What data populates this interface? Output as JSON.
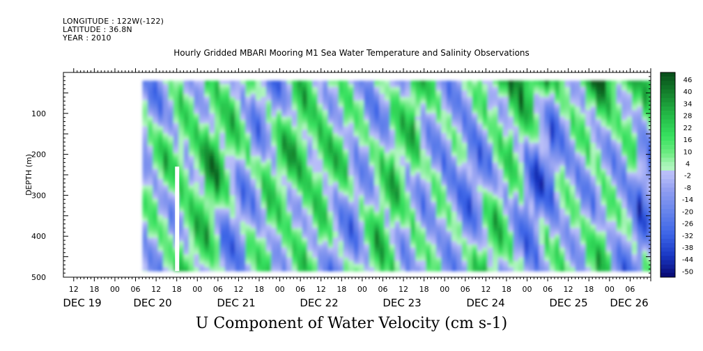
{
  "header": {
    "longitude": "LONGITUDE : 122W(-122)",
    "latitude": "LATITUDE : 36.8N",
    "year": "YEAR : 2010"
  },
  "title": "Hourly Gridded MBARI Mooring M1 Sea Water Temperature and Salinity Observations",
  "chart_data": {
    "type": "heatmap",
    "title": "Hourly Gridded MBARI Mooring M1 Sea Water Temperature and Salinity Observations",
    "variable_label": "U Component of Water Velocity (cm s-1)",
    "ylabel": "DEPTH (m)",
    "ylim": [
      500,
      0
    ],
    "yticks": [
      100,
      200,
      300,
      400,
      500
    ],
    "x_hour_labels": [
      "12",
      "18",
      "00",
      "06",
      "12",
      "18",
      "00",
      "06",
      "12",
      "18",
      "00",
      "06",
      "12",
      "18",
      "00",
      "06",
      "12",
      "18",
      "00",
      "06",
      "12",
      "18",
      "00",
      "06",
      "12",
      "18",
      "00",
      "06"
    ],
    "x_day_labels": [
      "DEC 19",
      "DEC 20",
      "DEC 21",
      "DEC 22",
      "DEC 23",
      "DEC 24",
      "DEC 25",
      "DEC 26"
    ],
    "xlim_hours": [
      -15,
      156
    ],
    "data_depth_range": [
      20,
      485
    ],
    "data_time_start_hour": 8,
    "colorbar": {
      "labels": [
        "46",
        "40",
        "34",
        "28",
        "22",
        "16",
        "10",
        "4",
        "-2",
        "-8",
        "-14",
        "-20",
        "-26",
        "-32",
        "-38",
        "-44",
        "-50"
      ],
      "range": [
        -50,
        46
      ]
    },
    "field_description": "Alternating positive (green) and negative (blue) U-velocity bands over ~7.5 days; strongest positive values near surface on DEC 25-26"
  }
}
